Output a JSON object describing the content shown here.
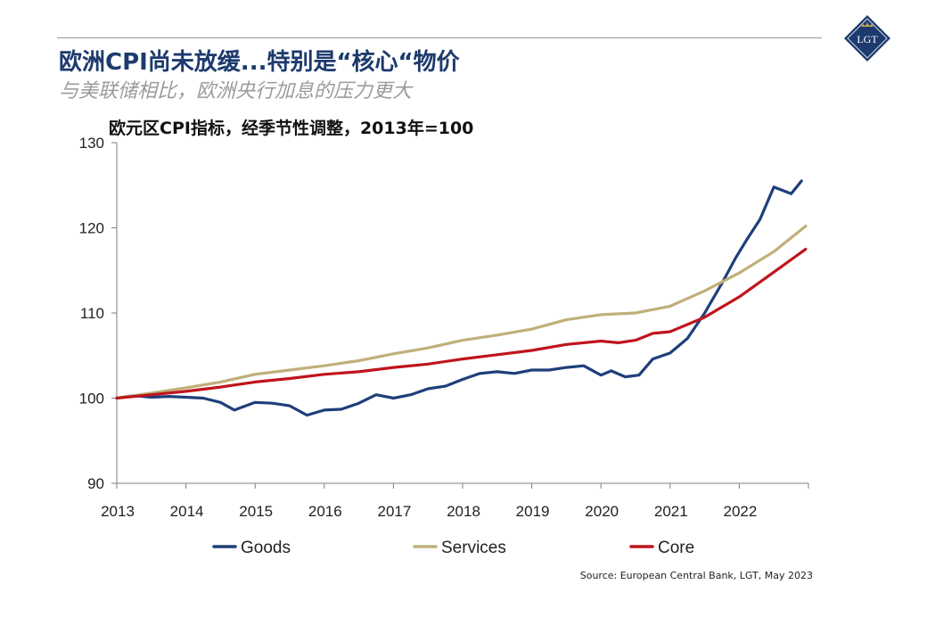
{
  "header": {
    "title": "欧洲CPI尚未放缓...特别是“核心“物价",
    "subtitle": "与美联储相比，欧洲央行加息的压力更大",
    "logo_text": "LGT"
  },
  "source": "Source: European Central Bank, LGT,  May 2023",
  "colors": {
    "goods": "#1f3f7a",
    "services": "#bfb07a",
    "core": "#c0141c",
    "title": "#1d3a6e"
  },
  "chart_data": {
    "type": "line",
    "title": "欧元区CPI指标，经季节性调整，2013年=100",
    "xlabel": "",
    "ylabel": "",
    "xlim": [
      2013,
      2023
    ],
    "ylim": [
      90,
      130
    ],
    "y_ticks": [
      90,
      100,
      110,
      120,
      130
    ],
    "x_ticks": [
      2013,
      2014,
      2015,
      2016,
      2017,
      2018,
      2019,
      2020,
      2021,
      2022
    ],
    "legend_position": "bottom",
    "series": [
      {
        "name": "Goods",
        "color": "#1f3f7a",
        "x": [
          2013.0,
          2013.25,
          2013.5,
          2013.75,
          2014.0,
          2014.25,
          2014.5,
          2014.7,
          2015.0,
          2015.25,
          2015.5,
          2015.75,
          2016.0,
          2016.25,
          2016.5,
          2016.75,
          2017.0,
          2017.25,
          2017.5,
          2017.75,
          2018.0,
          2018.25,
          2018.5,
          2018.75,
          2019.0,
          2019.25,
          2019.5,
          2019.75,
          2020.0,
          2020.15,
          2020.35,
          2020.55,
          2020.75,
          2021.0,
          2021.25,
          2021.5,
          2021.75,
          2021.95,
          2022.1,
          2022.3,
          2022.5,
          2022.75,
          2022.9
        ],
        "values": [
          100,
          100.3,
          100.1,
          100.2,
          100.1,
          100.0,
          99.5,
          98.6,
          99.5,
          99.4,
          99.1,
          98.0,
          98.6,
          98.7,
          99.4,
          100.4,
          100.0,
          100.4,
          101.1,
          101.4,
          102.2,
          102.9,
          103.1,
          102.9,
          103.3,
          103.3,
          103.6,
          103.8,
          102.7,
          103.2,
          102.5,
          102.7,
          104.6,
          105.3,
          107.0,
          110.0,
          113.5,
          116.5,
          118.5,
          121.0,
          124.8,
          124.0,
          125.5
        ]
      },
      {
        "name": "Services",
        "color": "#bfb07a",
        "x": [
          2013.0,
          2013.5,
          2014.0,
          2014.5,
          2015.0,
          2015.5,
          2016.0,
          2016.5,
          2017.0,
          2017.5,
          2018.0,
          2018.5,
          2019.0,
          2019.5,
          2020.0,
          2020.5,
          2021.0,
          2021.5,
          2022.0,
          2022.5,
          2022.96
        ],
        "values": [
          100,
          100.6,
          101.2,
          101.9,
          102.8,
          103.3,
          103.8,
          104.4,
          105.2,
          105.9,
          106.8,
          107.4,
          108.1,
          109.2,
          109.8,
          110.0,
          110.8,
          112.6,
          114.7,
          117.2,
          120.2
        ]
      },
      {
        "name": "Core",
        "color": "#c0141c",
        "x": [
          2013.0,
          2013.5,
          2014.0,
          2014.5,
          2015.0,
          2015.5,
          2016.0,
          2016.5,
          2017.0,
          2017.5,
          2018.0,
          2018.5,
          2019.0,
          2019.5,
          2020.0,
          2020.25,
          2020.5,
          2020.75,
          2021.0,
          2021.5,
          2022.0,
          2022.5,
          2022.96
        ],
        "values": [
          100,
          100.4,
          100.8,
          101.3,
          101.9,
          102.3,
          102.8,
          103.1,
          103.6,
          104.0,
          104.6,
          105.1,
          105.6,
          106.3,
          106.7,
          106.5,
          106.8,
          107.6,
          107.8,
          109.5,
          111.9,
          114.8,
          117.5
        ]
      }
    ]
  }
}
